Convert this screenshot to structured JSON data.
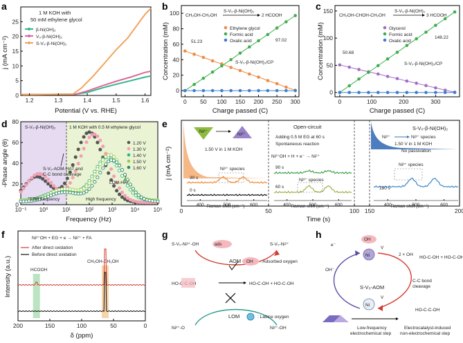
{
  "colors": {
    "bNi": "#2fb68a",
    "voNi": "#e0659b",
    "svoNi": "#f2a35a",
    "eg": "#f08a45",
    "fa": "#3fae4f",
    "oa": "#3a7fd0",
    "gly": "#a46bc4",
    "red": "#d43a30",
    "black": "#111111",
    "purpleBg": "#e6dbf1",
    "greenBg": "#eaf3d3",
    "orangeSpec": "#f08b38",
    "greenSpec1": "#3fa24a",
    "greenSpec2": "#9bb348",
    "blueSpec": "#3b86c9"
  },
  "panels": {
    "a": {
      "label": "a",
      "xlabel": "Potential (V vs. RHE)",
      "ylabel": "j (mA cm⁻²)",
      "note1": "1 M KOH with",
      "note2": "50 mM ethylene glycol"
    },
    "b": {
      "label": "b",
      "xlabel": "Charge passed (C)",
      "ylabel": "Concentration (mM)",
      "eq_left": "CH₂OH-CH₂OH",
      "eq_cat": "S-V₀-β-Ni(OH)₂",
      "eq_right": "2 HCOOH",
      "sample": "S-V₀-β-Ni(OH)₂/CP",
      "ann1": "51.23",
      "ann2": "97.02"
    },
    "c": {
      "label": "c",
      "xlabel": "Charge passed (C)",
      "ylabel": "Concentration (mM)",
      "eq_left": "CH₂OH-CHOH-CH₂OH",
      "eq_cat": "S-V₀-β-Ni(OH)₂",
      "eq_right": "3 HCOOH",
      "sample": "S-V₀-β-Ni(OH)₂/CP",
      "ann1": "50.68",
      "ann2": "148.22"
    },
    "d": {
      "label": "d",
      "xlabel": "Frequency (Hz)",
      "ylabel": "-Phase angle (θ)",
      "region_left": "S-V₀-β-Ni(OH)₂",
      "region_right": "1 M KOH with 0.5 M ethylene glycol",
      "low": "Low frequency",
      "high": "High frequency",
      "ann1a": "S-V₀-AOM-HAT and",
      "ann1b": "C-C bond cleavage",
      "ann2": "LOM-HAT"
    },
    "e": {
      "label": "e",
      "xlabel": "Time (s)",
      "ylabel": "j (mA cm⁻²)",
      "seg1_text": "1.50 V in 1 M KOH",
      "seg1_species": "Ni³⁺ species",
      "seg2_title": "Open-circuit",
      "seg2_line1": "Adding 0.5 M EG at 60 s",
      "seg2_line2": "Spontaneous reaction",
      "seg2_species": "Ni³⁺ species",
      "seg3_title": "S-V₀-β-Ni(OH)₂",
      "seg3_arrow_label": "Ni³⁺ species",
      "seg3_text1": "1.50 V in 1 M KOH",
      "seg3_text2": "No passivation",
      "seg3_species": "Ni³⁺ species",
      "raman_xlabel": "Raman shift (cm⁻¹)",
      "tag_30": "30 s",
      "tag_0": "0 s",
      "tag_90": "90 s",
      "tag_60": "60 s",
      "tag_180": "180 s"
    },
    "f": {
      "label": "f",
      "xlabel": "δ (ppm)",
      "ylabel": "Intensity (a.u.)",
      "legend_after": "After direct oxidation",
      "legend_before": "Before direct oxidation",
      "hcooh": "HCOOH",
      "ch2oh": "CH₂OH-CH₂OH"
    },
    "g": {
      "label": "g",
      "aom": "AOM",
      "lom": "LOM",
      "ads_label": ": Adsorbed oxygen",
      "lat_label": ": Lattice oxygen",
      "top_left": "S-V₀-Ni³⁺-OH",
      "top_right": "S-V₀-Ni²⁺",
      "bot_left": "Ni³⁺-O",
      "bot_right": "Ni²⁺-OH",
      "ads_tag": "ads"
    },
    "h": {
      "label": "h",
      "center": "S-V₀-AOM",
      "oh_ads": "OH",
      "ohm": "OH⁻",
      "em": "e⁻",
      "vfo": "V",
      "cc1": "C-C bond",
      "cc2": "cleavage",
      "two_oh": "2 × OH",
      "step1a": "Low-frequency",
      "step1b": "electrochemical step",
      "step2a": "Electrocatalyst-induced",
      "step2b": "non-electrochemical step",
      "ni_label": "Ni"
    }
  },
  "chart_data": [
    {
      "panel": "a",
      "type": "line",
      "title": "",
      "xlabel": "Potential (V vs. RHE)",
      "ylabel": "j (mA cm⁻²)",
      "xlim": [
        1.17,
        1.62
      ],
      "ylim": [
        0,
        30
      ],
      "xticks": [
        1.2,
        1.3,
        1.4,
        1.5,
        1.6
      ],
      "yticks": [
        0,
        5,
        10,
        15,
        20,
        25
      ],
      "series": [
        {
          "name": "β-Ni(OH)₂",
          "points": [
            [
              1.17,
              0.3
            ],
            [
              1.36,
              0.4
            ],
            [
              1.4,
              1.0
            ],
            [
              1.45,
              2.5
            ],
            [
              1.5,
              3.8
            ],
            [
              1.55,
              5.0
            ],
            [
              1.6,
              6.2
            ],
            [
              1.62,
              6.6
            ]
          ]
        },
        {
          "name": "V₀-β-Ni(OH)₂",
          "points": [
            [
              1.17,
              0.3
            ],
            [
              1.36,
              0.4
            ],
            [
              1.4,
              1.5
            ],
            [
              1.45,
              3.2
            ],
            [
              1.5,
              4.8
            ],
            [
              1.55,
              6.2
            ],
            [
              1.6,
              7.8
            ],
            [
              1.62,
              8.2
            ]
          ]
        },
        {
          "name": "S-V₀-β-Ni(OH)₂",
          "points": [
            [
              1.17,
              0.3
            ],
            [
              1.35,
              0.4
            ],
            [
              1.38,
              2.5
            ],
            [
              1.42,
              6.5
            ],
            [
              1.46,
              11
            ],
            [
              1.5,
              15.5
            ],
            [
              1.54,
              19.5
            ],
            [
              1.57,
              23.5
            ],
            [
              1.6,
              27.5
            ],
            [
              1.62,
              29.5
            ]
          ]
        }
      ]
    },
    {
      "panel": "b",
      "type": "line",
      "xlabel": "Charge passed (C)",
      "ylabel": "Concentration (mM)",
      "xlim": [
        -10,
        310
      ],
      "ylim": [
        -8,
        110
      ],
      "xticks": [
        0,
        50,
        100,
        150,
        200,
        250,
        300
      ],
      "yticks": [
        0,
        20,
        40,
        60,
        80,
        100
      ],
      "x": [
        0,
        25,
        50,
        75,
        100,
        125,
        150,
        175,
        200,
        225,
        250,
        275,
        300
      ],
      "series": [
        {
          "name": "Ethylene glycol",
          "values": [
            51.23,
            47,
            43,
            38.5,
            34.5,
            30,
            26,
            21.5,
            17.5,
            13,
            9,
            4.5,
            0.5
          ]
        },
        {
          "name": "Formic acid",
          "values": [
            0,
            8,
            16,
            24,
            32,
            40,
            48.5,
            56.5,
            64.5,
            72.5,
            81,
            89,
            97.02
          ]
        },
        {
          "name": "Oxalic acid",
          "values": [
            0,
            0,
            0,
            0,
            0,
            0,
            0,
            0,
            0,
            0,
            0,
            0,
            0
          ]
        }
      ]
    },
    {
      "panel": "c",
      "type": "line",
      "xlabel": "Charge passed (C)",
      "ylabel": "Concentration (mM)",
      "xlim": [
        -15,
        375
      ],
      "ylim": [
        -8,
        160
      ],
      "xticks": [
        0,
        100,
        200,
        300
      ],
      "yticks": [
        0,
        50,
        100,
        150
      ],
      "x": [
        0,
        30,
        60,
        90,
        120,
        150,
        180,
        210,
        240,
        270,
        300,
        330,
        360
      ],
      "series": [
        {
          "name": "Glycerol",
          "values": [
            50.68,
            46.5,
            42.3,
            38,
            34,
            29.5,
            25.5,
            21,
            17,
            12.7,
            8.5,
            4.2,
            0.5
          ]
        },
        {
          "name": "Formic acid",
          "values": [
            0,
            12.3,
            24.7,
            37,
            49.4,
            61.7,
            74,
            86.5,
            98.8,
            111,
            123.5,
            135.8,
            148.22
          ]
        },
        {
          "name": "Oxalic acid",
          "values": [
            0,
            0,
            0,
            0,
            0,
            0,
            0,
            0,
            0,
            0,
            0,
            0,
            0
          ]
        }
      ]
    },
    {
      "panel": "d",
      "type": "scatter",
      "xlabel": "Frequency (Hz)",
      "ylabel": "-Phase angle (θ)",
      "xlim_log10": [
        -1,
        5
      ],
      "ylim": [
        0,
        80
      ],
      "xtick_labels": [
        "10⁻¹",
        "10⁰",
        "10¹",
        "10²",
        "10³",
        "10⁴",
        "10⁵"
      ],
      "yticks": [
        0,
        20,
        40,
        60,
        80
      ],
      "legend": [
        "1.20 V",
        "1.30 V",
        "1.40 V",
        "1.50 V",
        "1.60 V"
      ],
      "series": [
        {
          "name": "1.20 V",
          "peaks": [
            {
              "logf": -0.3,
              "h": 25,
              "w": 0.8
            },
            {
              "logf": 2.0,
              "h": 68,
              "w": 0.9
            }
          ],
          "base": 2
        },
        {
          "name": "1.30 V",
          "peaks": [
            {
              "logf": -0.2,
              "h": 28,
              "w": 0.8
            },
            {
              "logf": 2.2,
              "h": 66,
              "w": 0.9
            }
          ],
          "base": 2
        },
        {
          "name": "1.40 V",
          "peaks": [
            {
              "logf": 0.8,
              "h": 10,
              "w": 0.9
            },
            {
              "logf": 2.8,
              "h": 42,
              "w": 0.85
            }
          ],
          "base": 4
        },
        {
          "name": "1.50 V",
          "peaks": [
            {
              "logf": 0.9,
              "h": 11,
              "w": 0.9
            },
            {
              "logf": 2.9,
              "h": 44,
              "w": 0.85
            }
          ],
          "base": 4
        },
        {
          "name": "1.60 V",
          "peaks": [
            {
              "logf": 0.9,
              "h": 9,
              "w": 0.9
            },
            {
              "logf": 3.0,
              "h": 40,
              "w": 0.85
            }
          ],
          "base": 3
        }
      ]
    },
    {
      "panel": "e",
      "type": "line",
      "xlabel": "Time (s)",
      "ylabel": "j (mA cm⁻²)",
      "segments": [
        {
          "xlim": [
            0,
            50
          ],
          "xticks": [
            0,
            50
          ]
        },
        {
          "xlim": [
            50,
            100
          ],
          "xticks": [
            50,
            100
          ]
        },
        {
          "xlim": [
            150,
            200
          ],
          "xticks": [
            150,
            200
          ]
        }
      ],
      "raman_xticks": [
        400,
        500,
        600
      ]
    },
    {
      "panel": "f",
      "type": "line",
      "xlabel": "δ (ppm)",
      "ylabel": "Intensity (a.u.)",
      "xlim": [
        200,
        0
      ],
      "xticks": [
        200,
        150,
        100,
        50,
        0
      ],
      "peaks_ppm": {
        "HCOOH": 171,
        "CH2OH-CH2OH": 63
      }
    }
  ]
}
